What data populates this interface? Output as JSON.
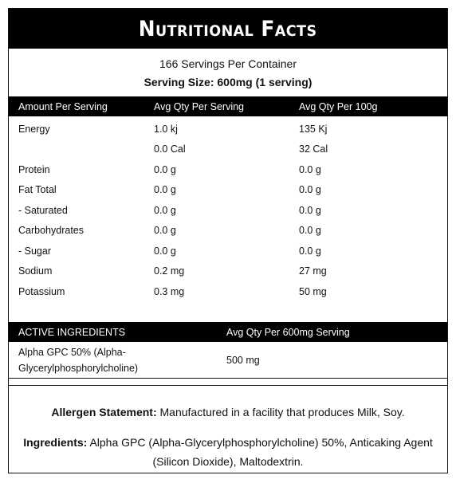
{
  "title": "Nutritional Facts",
  "servings_per_container": "166 Servings Per Container",
  "serving_size": "Serving Size: 600mg (1 serving)",
  "nutrition_headers": [
    "Amount Per Serving",
    "Avg Qty Per Serving",
    "Avg Qty Per 100g"
  ],
  "nutrition_rows": [
    [
      "Energy",
      "1.0 kj",
      "135 Kj"
    ],
    [
      "",
      "0.0 Cal",
      "32 Cal"
    ],
    [
      "Protein",
      "0.0 g",
      "0.0 g"
    ],
    [
      "Fat Total",
      "0.0 g",
      "0.0 g"
    ],
    [
      "- Saturated",
      "0.0 g",
      "0.0 g"
    ],
    [
      "Carbohydrates",
      "0.0 g",
      "0.0 g"
    ],
    [
      "- Sugar",
      "0.0 g",
      "0.0 g"
    ],
    [
      "Sodium",
      "0.2 mg",
      "27 mg"
    ],
    [
      "Potassium",
      "0.3 mg",
      "50 mg"
    ]
  ],
  "active_headers": [
    "ACTIVE INGREDIENTS",
    "Avg Qty Per 600mg Serving"
  ],
  "active_rows": [
    {
      "name_line1": "Alpha GPC 50% (Alpha-",
      "name_line2": "Glycerylphosphorylcholine)",
      "qty": "500 mg"
    }
  ],
  "allergen_label": "Allergen Statement:",
  "allergen_text": " Manufactured in a facility that produces Milk, Soy.",
  "ingredients_label": "Ingredients:",
  "ingredients_text": " Alpha GPC (Alpha-Glycerylphosphorylcholine) 50%, Anticaking Agent (Silicon Dioxide), Maltodextrin.",
  "colors": {
    "header_bg": "#000000",
    "header_text": "#ffffff",
    "border": "#111111"
  }
}
